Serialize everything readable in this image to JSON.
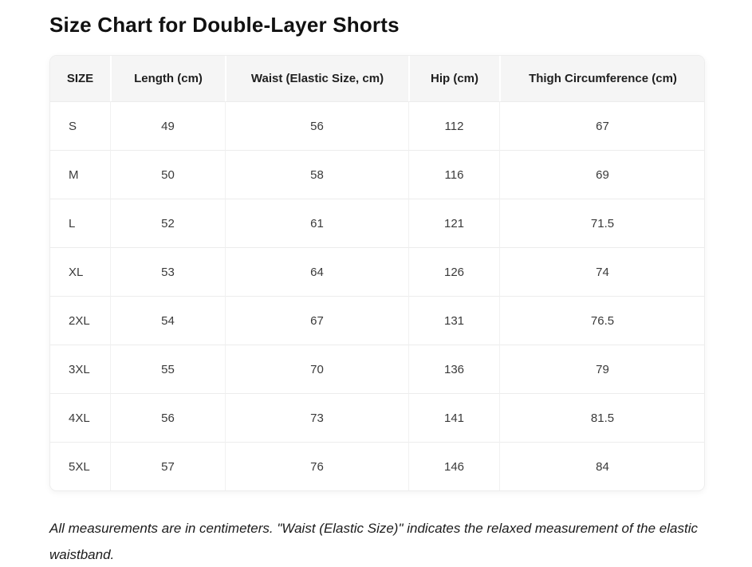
{
  "page_title": "Size Chart for Double-Layer Shorts",
  "table": {
    "columns": [
      "SIZE",
      "Length (cm)",
      "Waist (Elastic Size, cm)",
      "Hip (cm)",
      "Thigh Circumference (cm)"
    ],
    "rows": [
      [
        "S",
        "49",
        "56",
        "112",
        "67"
      ],
      [
        "M",
        "50",
        "58",
        "116",
        "69"
      ],
      [
        "L",
        "52",
        "61",
        "121",
        "71.5"
      ],
      [
        "XL",
        "53",
        "64",
        "126",
        "74"
      ],
      [
        "2XL",
        "54",
        "67",
        "131",
        "76.5"
      ],
      [
        "3XL",
        "55",
        "70",
        "136",
        "79"
      ],
      [
        "4XL",
        "56",
        "73",
        "141",
        "81.5"
      ],
      [
        "5XL",
        "57",
        "76",
        "146",
        "84"
      ]
    ]
  },
  "footnote": "All measurements are in centimeters. \"Waist (Elastic Size)\" indicates the relaxed measurement of the elastic waistband.",
  "colors": {
    "header_bg": "#f5f5f5",
    "row_border": "#ececec",
    "title_text": "#111111",
    "body_text": "#3a3a3a"
  },
  "chart_data": {
    "type": "table",
    "title": "Size Chart for Double-Layer Shorts",
    "columns": [
      "SIZE",
      "Length (cm)",
      "Waist (Elastic Size, cm)",
      "Hip (cm)",
      "Thigh Circumference (cm)"
    ],
    "rows": [
      [
        "S",
        49,
        56,
        112,
        67
      ],
      [
        "M",
        50,
        58,
        116,
        69
      ],
      [
        "L",
        52,
        61,
        121,
        71.5
      ],
      [
        "XL",
        53,
        64,
        126,
        74
      ],
      [
        "2XL",
        54,
        67,
        131,
        76.5
      ],
      [
        "3XL",
        55,
        70,
        136,
        79
      ],
      [
        "4XL",
        56,
        73,
        141,
        81.5
      ],
      [
        "5XL",
        57,
        76,
        146,
        84
      ]
    ]
  }
}
